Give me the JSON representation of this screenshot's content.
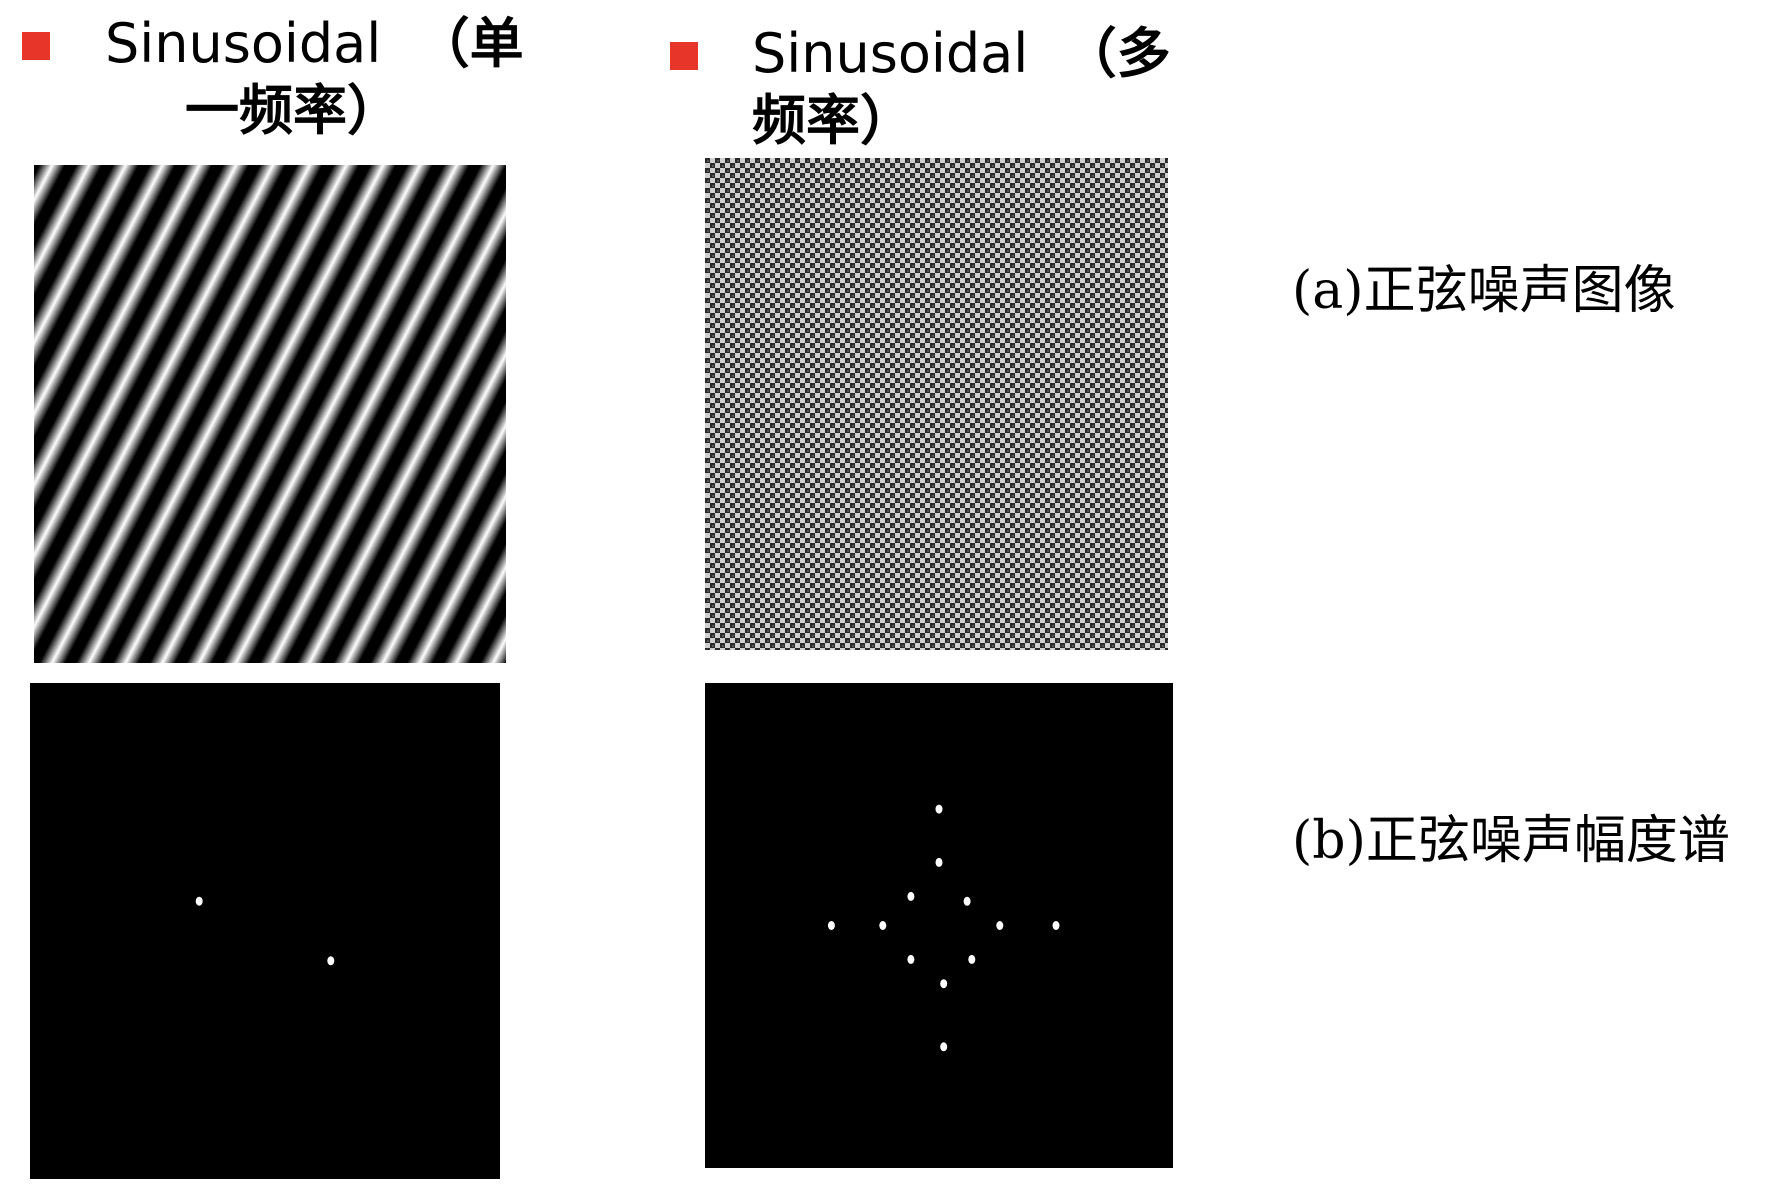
{
  "bullet_color": "#e8352a",
  "left": {
    "title_en": "Sinusoidal",
    "title_cn_line1": "（单",
    "title_cn_line2": "一频率）",
    "spectrum_peaks": [
      [
        -0.14,
        -0.06
      ],
      [
        0.14,
        0.06
      ]
    ]
  },
  "right": {
    "title_en": "Sinusoidal",
    "title_cn_line1": "（多",
    "title_cn_line2": "频率）",
    "spectrum_peaks": [
      [
        0.0,
        -0.24
      ],
      [
        0.0,
        -0.13
      ],
      [
        -0.06,
        -0.06
      ],
      [
        0.06,
        -0.05
      ],
      [
        -0.23,
        0.0
      ],
      [
        -0.12,
        0.0
      ],
      [
        0.13,
        0.0
      ],
      [
        0.25,
        0.0
      ],
      [
        -0.06,
        0.07
      ],
      [
        0.07,
        0.07
      ],
      [
        0.01,
        0.12
      ],
      [
        0.01,
        0.25
      ]
    ]
  },
  "captions": {
    "a": "(a)正弦噪声图像",
    "b": "(b)正弦噪声幅度谱"
  }
}
